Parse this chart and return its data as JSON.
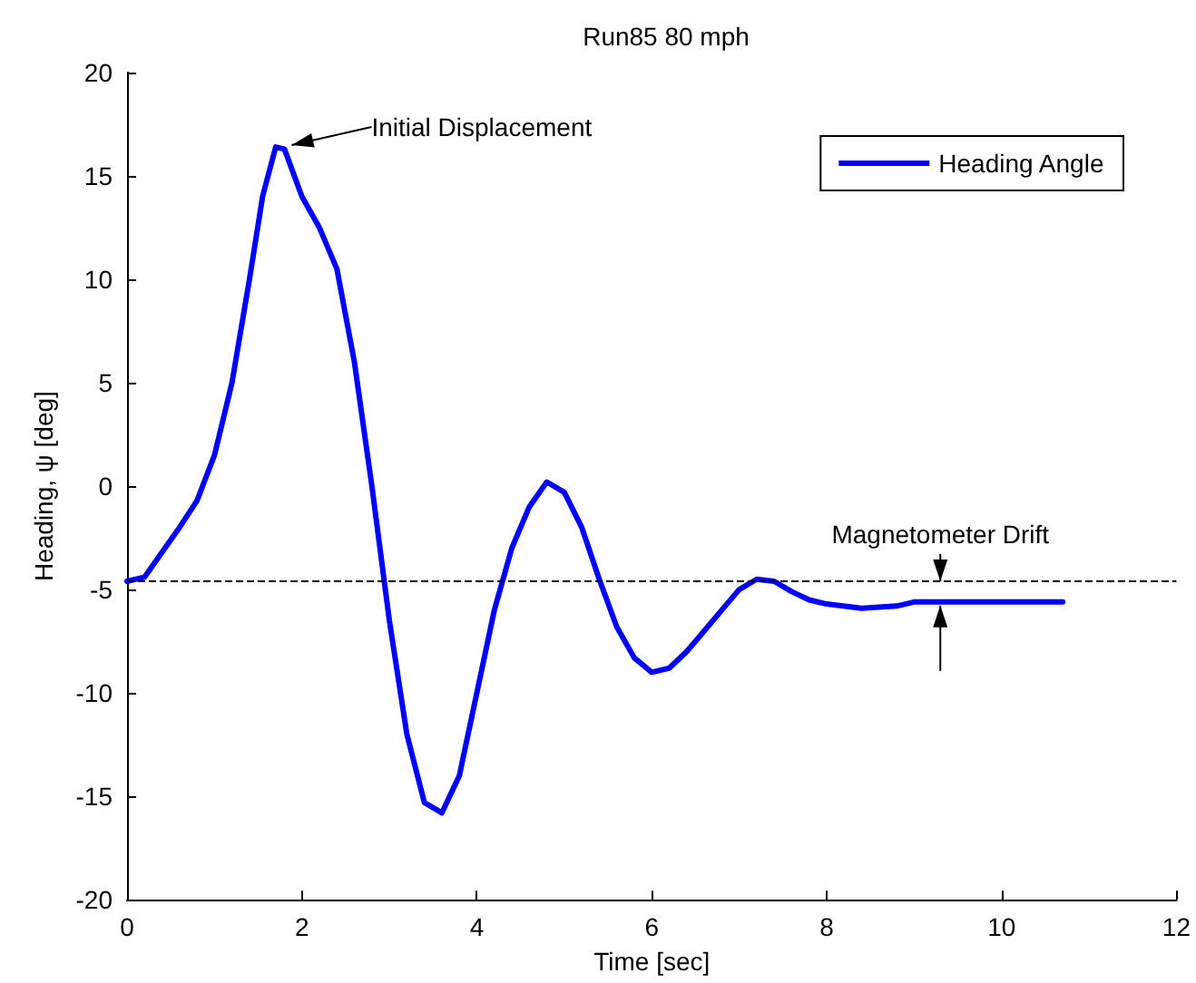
{
  "chart_data": {
    "type": "line",
    "title": "Run85 80 mph",
    "xlabel": "Time [sec]",
    "ylabel": "Heading, ψ [deg]",
    "x": [
      0,
      0.2,
      0.4,
      0.6,
      0.8,
      1.0,
      1.2,
      1.4,
      1.55,
      1.7,
      1.8,
      2.0,
      2.2,
      2.4,
      2.6,
      2.8,
      3.0,
      3.2,
      3.4,
      3.6,
      3.8,
      4.0,
      4.2,
      4.4,
      4.6,
      4.8,
      5.0,
      5.2,
      5.4,
      5.6,
      5.8,
      6.0,
      6.2,
      6.4,
      6.6,
      6.8,
      7.0,
      7.2,
      7.4,
      7.6,
      7.8,
      8.0,
      8.4,
      8.8,
      9.0,
      10.7
    ],
    "series": [
      {
        "name": "Heading Angle",
        "color": "#0000ff",
        "values": [
          -4.6,
          -4.4,
          -3.2,
          -2,
          -0.7,
          1.5,
          5,
          10,
          14,
          16.4,
          16.3,
          14,
          12.5,
          10.5,
          6,
          0,
          -6.5,
          -12,
          -15.3,
          -15.8,
          -14,
          -10,
          -6,
          -3,
          -1,
          0.2,
          -0.3,
          -2,
          -4.5,
          -6.8,
          -8.3,
          -9,
          -8.8,
          -8,
          -7,
          -6,
          -5,
          -4.5,
          -4.6,
          -5.1,
          -5.5,
          -5.7,
          -5.9,
          -5.8,
          -5.6,
          -5.6
        ]
      }
    ],
    "xlim": [
      0,
      12
    ],
    "xticks": [
      0,
      2,
      4,
      6,
      8,
      10,
      12
    ],
    "ylim": [
      -20,
      20
    ],
    "yticks": [
      -20,
      -15,
      -10,
      -5,
      0,
      5,
      10,
      15,
      20
    ],
    "ref_lines": [
      {
        "axis": "y",
        "value": -4.6,
        "color": "#000000",
        "line_style": "dashed"
      }
    ],
    "annotations": [
      {
        "text": "Initial Displacement",
        "x": 1.8,
        "y": 16.4
      },
      {
        "text": "Magnetometer Drift",
        "x": 9.3,
        "y": -4.6
      }
    ],
    "grid": false,
    "legend": "top right",
    "marker": "none",
    "line_style": "solid"
  }
}
